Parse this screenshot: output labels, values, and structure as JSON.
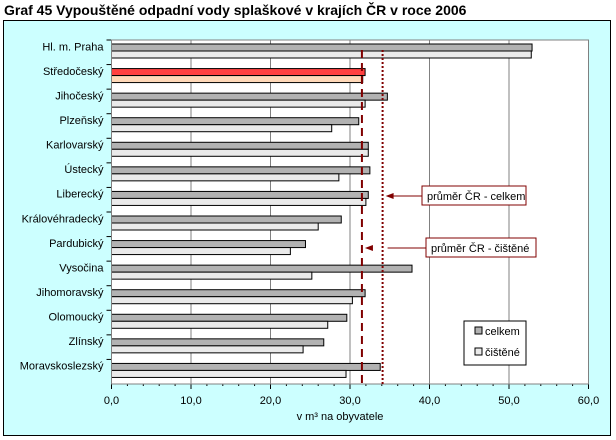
{
  "chart_data": {
    "type": "bar",
    "title": "Graf 45 Vypouštěné odpadní vody splaškové v krajích ČR v roce 2006",
    "xlabel": "v m³ na obyvatele",
    "xlim": [
      0,
      60
    ],
    "xticks": [
      "0,0",
      "10,0",
      "20,0",
      "30,0",
      "40,0",
      "50,0",
      "60,0"
    ],
    "categories": [
      "Hl. m. Praha",
      "Středočeský",
      "Jihočeský",
      "Plzeňský",
      "Karlovarský",
      "Ústecký",
      "Liberecký",
      "Královéhradecký",
      "Pardubický",
      "Vysočina",
      "Jihomoravský",
      "Olomoucký",
      "Zlínský",
      "Moravskoslezský"
    ],
    "series": [
      {
        "name": "celkem",
        "values": [
          52.9,
          31.9,
          34.7,
          31.1,
          32.3,
          32.5,
          32.3,
          28.9,
          24.4,
          37.8,
          31.9,
          29.6,
          26.7,
          33.8
        ],
        "color": "#b2b2b2",
        "highlight": "#ff4040"
      },
      {
        "name": "čištěné",
        "values": [
          52.8,
          31.6,
          31.9,
          27.7,
          32.3,
          28.6,
          32.0,
          26.0,
          22.5,
          25.2,
          30.3,
          27.2,
          24.1,
          29.5
        ],
        "color": "#eaeaea",
        "highlight": "#ffd8b8"
      }
    ],
    "highlight_index": 1,
    "reference_lines": [
      {
        "label": "průměr ČR - celkem",
        "value": 34.1,
        "style": "dotted",
        "color": "#800000"
      },
      {
        "label": "průměr ČR - čištěné",
        "value": 31.5,
        "style": "dashed",
        "color": "#800000"
      }
    ],
    "legend": "bottom-right",
    "grid": true
  }
}
